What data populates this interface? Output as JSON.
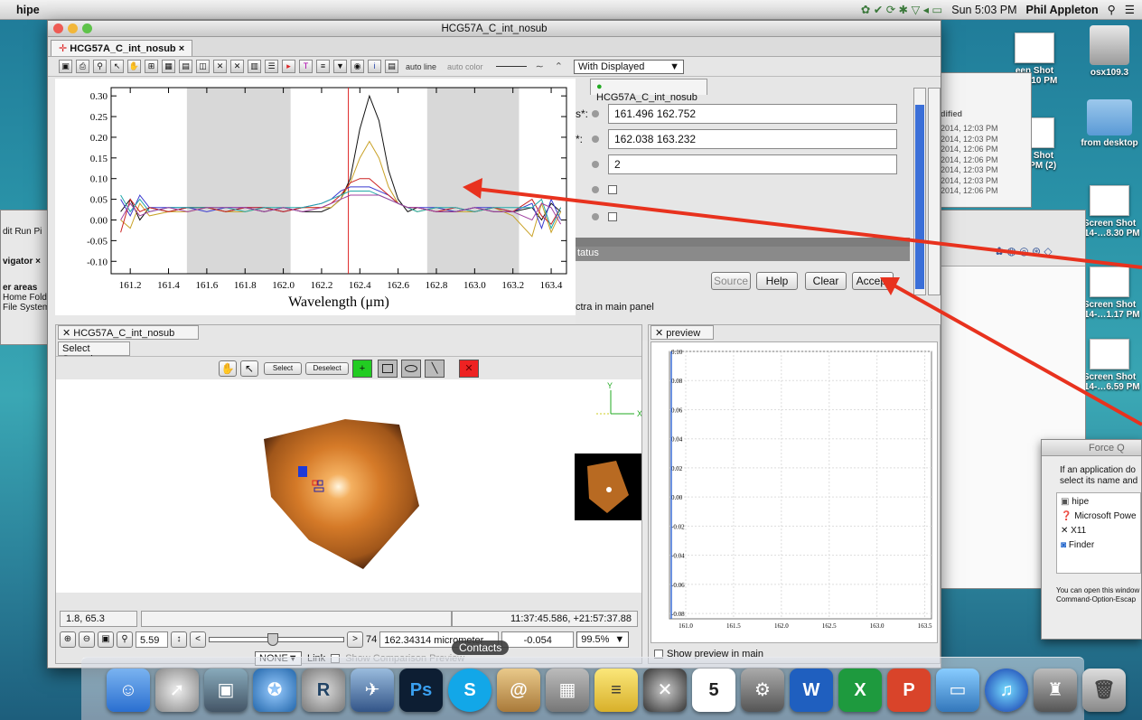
{
  "menubar": {
    "app_name": "hipe",
    "clock": "Sun 5:03 PM",
    "user": "Phil Appleton"
  },
  "desktop": {
    "icons": [
      {
        "label": "een Shot\n…-6.10 PM"
      },
      {
        "label": "osx109.3"
      },
      {
        "label": "from desktop"
      },
      {
        "label": "een Shot\n…0 PM (2)"
      },
      {
        "label": "Screen Shot\n014-…8.30 PM"
      },
      {
        "label": "Screen Shot\n014-…1.17 PM"
      },
      {
        "label": "Screen Shot\n014-…6.59 PM"
      }
    ]
  },
  "bg_window": {
    "modified_header": "dified",
    "modified_items": [
      "2014, 12:03 PM",
      "2014, 12:03 PM",
      "2014, 12:06 PM",
      "2014, 12:06 PM",
      "2014, 12:03 PM",
      "2014, 12:03 PM",
      "2014, 12:06 PM"
    ]
  },
  "left_bg": {
    "menu": "dit  Run  Pi",
    "navigator": "vigator ×",
    "items": [
      "er areas",
      "Home Fold",
      "File System"
    ]
  },
  "window": {
    "title": "HCG57A_C_int_nosub",
    "tab_label": "HCG57A_C_int_nosub ×"
  },
  "toolbar": {
    "auto_line": "auto line",
    "auto_color": "auto color",
    "display_select": "With Displayed"
  },
  "plot": {
    "xlabel": "Wavelength (μm)"
  },
  "chart_data": {
    "type": "line",
    "xlabel": "Wavelength (μm)",
    "ylabel": "",
    "xlim": [
      161.1,
      163.48
    ],
    "ylim": [
      -0.13,
      0.32
    ],
    "xticks": [
      "161.2",
      "161.4",
      "161.6",
      "161.8",
      "162.0",
      "162.2",
      "162.4",
      "162.6",
      "162.8",
      "163.0",
      "163.2",
      "163.4"
    ],
    "yticks": [
      "0.30",
      "0.25",
      "0.20",
      "0.15",
      "0.10",
      "0.05",
      "0.00",
      "-0.05",
      "-0.10"
    ],
    "shaded_ranges": [
      [
        161.496,
        162.038
      ],
      [
        162.752,
        163.232
      ]
    ],
    "marker_x": 162.34,
    "x": [
      161.15,
      161.2,
      161.25,
      161.3,
      161.4,
      161.5,
      161.6,
      161.7,
      161.8,
      161.9,
      162.0,
      162.1,
      162.2,
      162.25,
      162.3,
      162.35,
      162.4,
      162.45,
      162.5,
      162.55,
      162.6,
      162.65,
      162.7,
      162.8,
      162.9,
      163.0,
      163.1,
      163.2,
      163.3,
      163.35,
      163.4,
      163.45
    ],
    "series": [
      {
        "color": "#111111",
        "values": [
          0.02,
          0.05,
          0.0,
          0.03,
          0.02,
          0.03,
          0.03,
          0.02,
          0.03,
          0.02,
          0.03,
          0.02,
          0.02,
          0.03,
          0.05,
          0.1,
          0.22,
          0.3,
          0.24,
          0.12,
          0.05,
          0.02,
          0.03,
          0.02,
          0.02,
          0.03,
          0.02,
          0.02,
          0.03,
          0.0,
          0.04,
          0.02
        ]
      },
      {
        "color": "#c9a227",
        "values": [
          0.0,
          -0.02,
          0.04,
          0.01,
          0.02,
          0.02,
          0.03,
          0.02,
          0.02,
          0.03,
          0.02,
          0.03,
          0.03,
          0.03,
          0.05,
          0.09,
          0.15,
          0.19,
          0.15,
          0.08,
          0.04,
          0.03,
          0.02,
          0.03,
          0.02,
          0.02,
          0.03,
          0.01,
          -0.04,
          0.04,
          -0.03,
          0.02
        ]
      },
      {
        "color": "#3a3ad0",
        "values": [
          0.05,
          0.01,
          0.06,
          0.03,
          0.03,
          0.03,
          0.02,
          0.03,
          0.03,
          0.03,
          0.02,
          0.03,
          0.04,
          0.05,
          0.07,
          0.08,
          0.08,
          0.08,
          0.07,
          0.06,
          0.04,
          0.03,
          0.03,
          0.03,
          0.02,
          0.03,
          0.03,
          0.02,
          0.04,
          -0.02,
          0.05,
          0.0
        ]
      },
      {
        "color": "#cc2222",
        "values": [
          -0.03,
          0.05,
          0.02,
          0.03,
          0.02,
          0.03,
          0.03,
          0.02,
          0.03,
          0.03,
          0.02,
          0.03,
          0.03,
          0.04,
          0.06,
          0.09,
          0.1,
          0.1,
          0.08,
          0.06,
          0.04,
          0.03,
          0.03,
          0.02,
          0.03,
          0.02,
          0.03,
          0.02,
          0.05,
          0.01,
          -0.01,
          0.03
        ]
      },
      {
        "color": "#20a8a8",
        "values": [
          0.06,
          0.02,
          0.05,
          0.02,
          0.03,
          0.03,
          0.03,
          0.03,
          0.02,
          0.03,
          0.03,
          0.03,
          0.04,
          0.05,
          0.06,
          0.07,
          0.07,
          0.07,
          0.06,
          0.05,
          0.04,
          0.03,
          0.02,
          0.03,
          0.03,
          0.02,
          0.03,
          0.03,
          0.03,
          0.05,
          -0.02,
          0.03
        ]
      },
      {
        "color": "#a040a0",
        "values": [
          0.0,
          0.04,
          0.01,
          0.02,
          0.03,
          0.02,
          0.03,
          0.03,
          0.03,
          0.02,
          0.03,
          0.02,
          0.03,
          0.04,
          0.05,
          0.06,
          0.06,
          0.06,
          0.06,
          0.05,
          0.04,
          0.03,
          0.03,
          0.02,
          0.02,
          0.03,
          0.02,
          0.02,
          0.0,
          0.04,
          0.03,
          -0.01
        ]
      }
    ]
  },
  "form": {
    "header_tab": "HCG57A_C_int_nosub",
    "row1_label": "s*:",
    "row1_value": "161.496 162.752",
    "row2_label": "*:",
    "row2_value": "162.038 163.232",
    "row3_value": "2",
    "status_label": "tatus",
    "buttons": {
      "source": "Source",
      "help": "Help",
      "clear": "Clear",
      "accept": "Accept"
    },
    "footer_text": "ctra in main panel"
  },
  "lower": {
    "tab": "HCG57A_C_int_nosub",
    "subtab": "Select Spaxels",
    "select_btn": "Select",
    "deselect_btn": "Deselect",
    "axis_y": "Y",
    "axis_x": "X",
    "status_left": "1.8, 65.3",
    "status_right": "11:37:45.586, +21:57:37.88",
    "zoom": "5.59",
    "slice": "74",
    "wavelength": "162.34314 micrometer",
    "value": "-0.054",
    "percent": "99.5%",
    "none_select": "NONE",
    "link_label": "Link",
    "compare_label": "Show Comparison Preview"
  },
  "preview": {
    "tab": "preview",
    "yticks": [
      "0.10",
      "0.08",
      "0.06",
      "0.04",
      "0.02",
      "0.00",
      "-0.02",
      "-0.04",
      "-0.06",
      "-0.08"
    ],
    "xticks": [
      "161.0",
      "161.5",
      "162.0",
      "162.5",
      "163.0",
      "163.5"
    ],
    "checkbox_label": "Show preview in main"
  },
  "force_quit": {
    "title": "Force Q",
    "message": "If an application do\nselect its name and",
    "apps": [
      "hipe",
      "Microsoft Powe",
      "X11",
      "Finder"
    ],
    "footer": "You can open this window\nCommand-Option-Escap"
  },
  "dock": {
    "tooltip": "Contacts"
  },
  "colors": {
    "accent_red": "#e8321e",
    "plot_shade": "#d8d8d8",
    "slider_blue": "#3b6fd8"
  }
}
